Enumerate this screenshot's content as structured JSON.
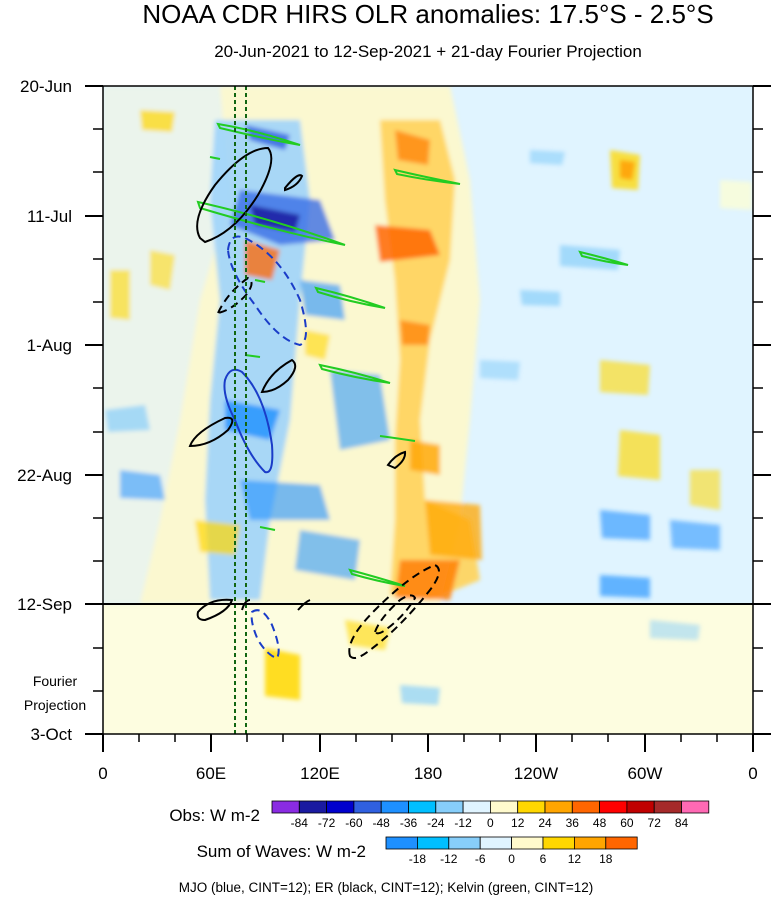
{
  "chart_data": {
    "type": "heatmap",
    "title": "NOAA CDR HIRS OLR anomalies: 17.5°S - 2.5°S",
    "subtitle": "20-Jun-2021 to 12-Sep-2021 + 21-day Fourier Projection",
    "x_ticks": [
      "0",
      "60E",
      "120E",
      "180",
      "120W",
      "60W",
      "0"
    ],
    "y_ticks": [
      "20-Jun",
      "11-Jul",
      "1-Aug",
      "22-Aug",
      "12-Sep",
      "3-Oct"
    ],
    "projection_label_line1": "Fourier",
    "projection_label_line2": "Projection",
    "projection_start": "12-Sep",
    "obs_legend": {
      "label": "Obs: W m-2",
      "levels": [
        "-84",
        "-72",
        "-60",
        "-48",
        "-36",
        "-24",
        "-12",
        "0",
        "12",
        "24",
        "36",
        "48",
        "60",
        "72",
        "84"
      ],
      "colors": [
        "#8a2be2",
        "#1a1aa0",
        "#0000cd",
        "#3060e0",
        "#1e90ff",
        "#00bfff",
        "#87cefa",
        "#e0f4ff",
        "#fffacd",
        "#ffd700",
        "#ffa500",
        "#ff6600",
        "#ff0000",
        "#c00000",
        "#a52a2a",
        "#ff69b4"
      ]
    },
    "waves_legend": {
      "label": "Sum of Waves: W m-2",
      "levels": [
        "-18",
        "-12",
        "-6",
        "0",
        "6",
        "12",
        "18"
      ],
      "colors": [
        "#1e90ff",
        "#00bfff",
        "#87cefa",
        "#e0f4ff",
        "#fffacd",
        "#ffd700",
        "#ffa500",
        "#ff6600"
      ]
    },
    "footer": "MJO (blue, CINT=12); ER (black, CINT=12); Kelvin (green, CINT=12)",
    "contour_series": [
      {
        "name": "MJO",
        "color": "#1a3cc8"
      },
      {
        "name": "ER",
        "color": "#000000"
      },
      {
        "name": "Kelvin",
        "color": "#22cc22"
      }
    ],
    "reference_longitudes": [
      "75E",
      "80E"
    ]
  },
  "colors": {
    "background_field": "#e0f4ff",
    "pale_yellow": "#fffacd",
    "projection_bg": "#ffffe0"
  }
}
